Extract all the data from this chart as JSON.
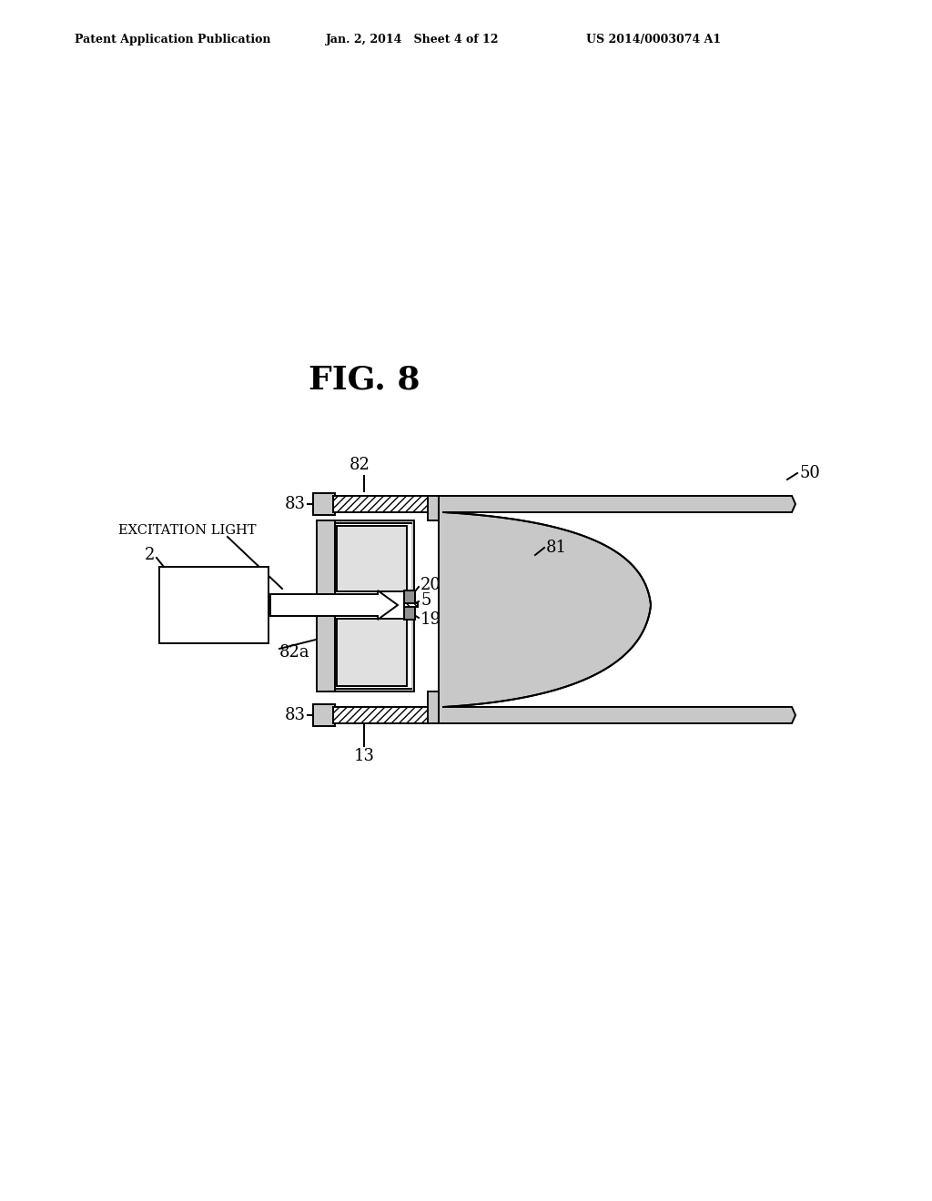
{
  "title": "FIG. 8",
  "header_left": "Patent Application Publication",
  "header_mid": "Jan. 2, 2014   Sheet 4 of 12",
  "header_right": "US 2014/0003074 A1",
  "bg": "#ffffff",
  "lc": "#000000",
  "dot_fill": "#c8c8c8",
  "hatch_fill": "#ffffff",
  "gray_elem": "#909090",
  "label_50": "50",
  "label_82": "82",
  "label_83": "83",
  "label_81": "81",
  "label_82a": "82a",
  "label_2": "2",
  "label_20": "20",
  "label_5": "5",
  "label_19": "19",
  "label_13": "13",
  "excitation_label": "EXCITATION LIGHT"
}
